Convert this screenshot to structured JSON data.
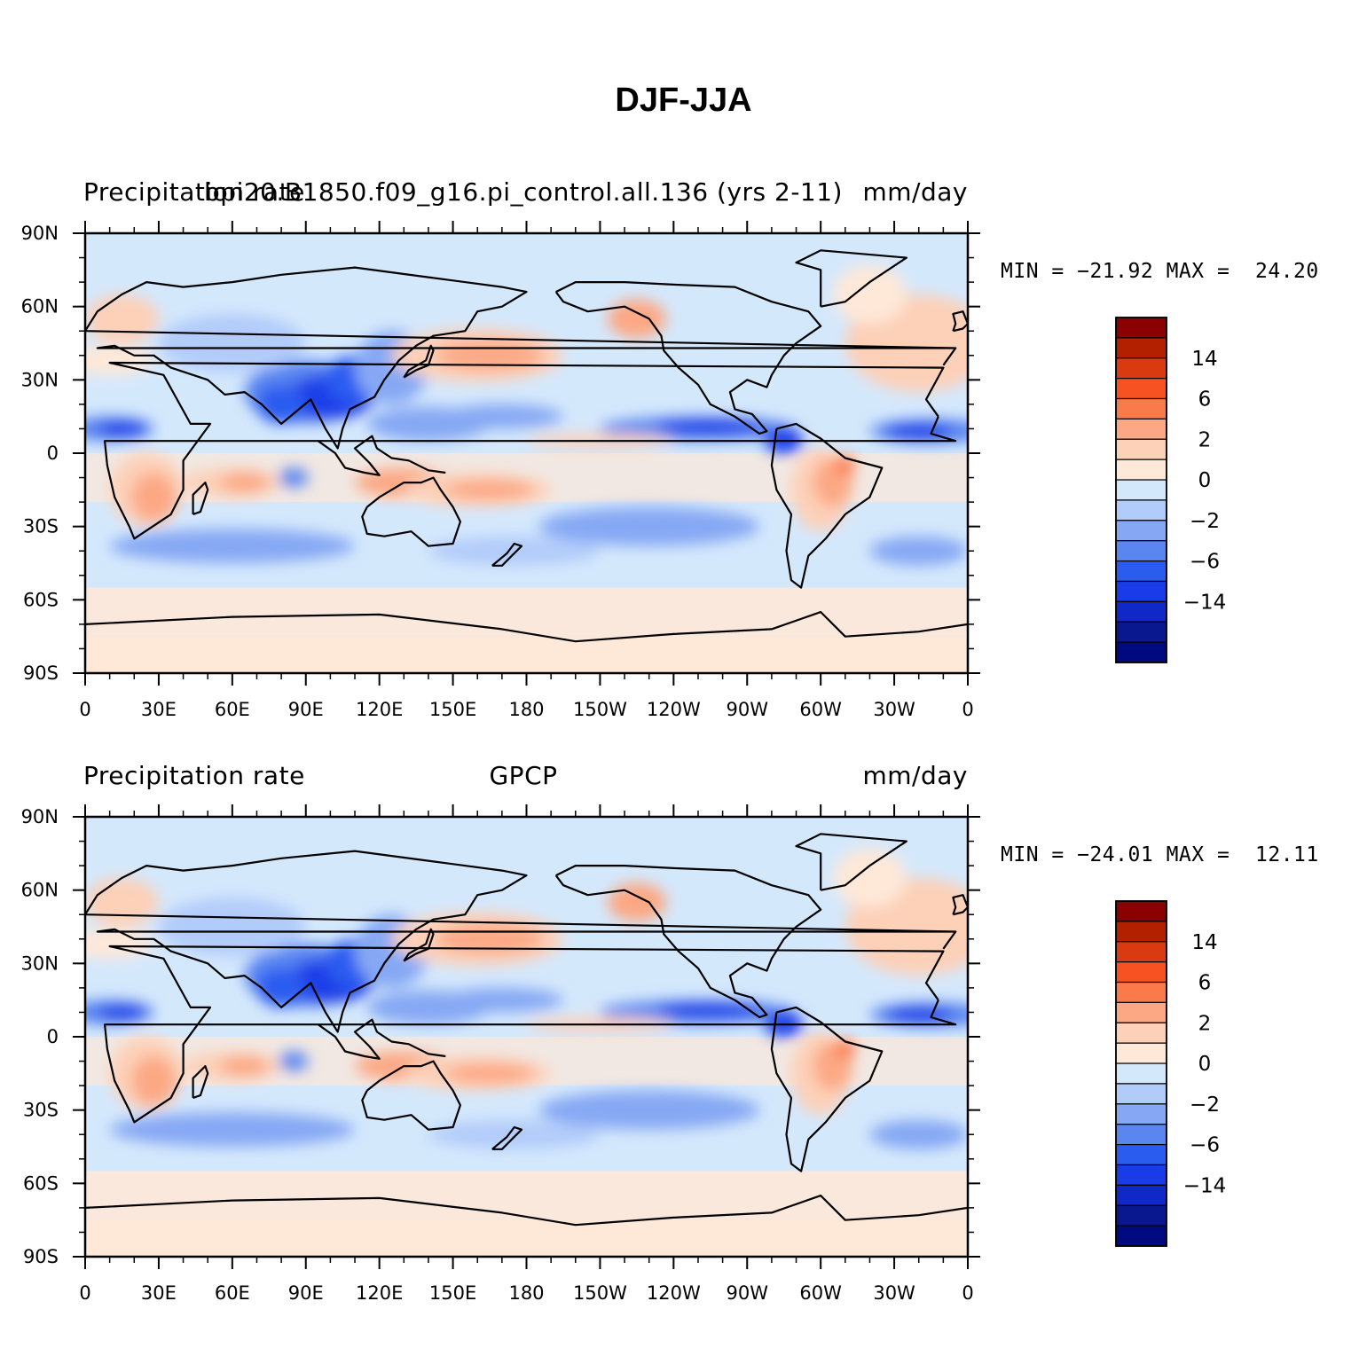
{
  "figure": {
    "title": "DJF-JJA"
  },
  "axes": {
    "lat_labels": [
      "90N",
      "60N",
      "30N",
      "0",
      "30S",
      "60S",
      "90S"
    ],
    "lon_labels": [
      "0",
      "30E",
      "60E",
      "90E",
      "120E",
      "150E",
      "180",
      "150W",
      "120W",
      "90W",
      "60W",
      "30W",
      "0"
    ]
  },
  "colorbar": {
    "labels": [
      "14",
      "6",
      "2",
      "0",
      "−2",
      "−6",
      "−14"
    ],
    "colors": [
      "#8b0000",
      "#b22000",
      "#d93a10",
      "#f65222",
      "#fb7a4a",
      "#fca884",
      "#fdd0b8",
      "#fee8d8",
      "#d4e8fc",
      "#b2ccfa",
      "#86a8f4",
      "#5a86f0",
      "#2b5cf0",
      "#1a3ce8",
      "#1028c8",
      "#0a1890",
      "#000a80"
    ]
  },
  "panels": [
    {
      "left_label": "Precipitation rate",
      "center_label": "bpi20.B1850.f09_g16.pi_control.all.136 (yrs 2-11)",
      "right_label": "mm/day",
      "stats": {
        "min_label": "MIN =",
        "min": "−21.92",
        "max_label": "MAX =",
        "max": "24.20"
      }
    },
    {
      "left_label": "Precipitation rate",
      "center_label": "GPCP",
      "right_label": "mm/day",
      "stats": {
        "min_label": "MIN =",
        "min": "−24.01",
        "max_label": "MAX =",
        "max": "12.11"
      }
    }
  ]
}
